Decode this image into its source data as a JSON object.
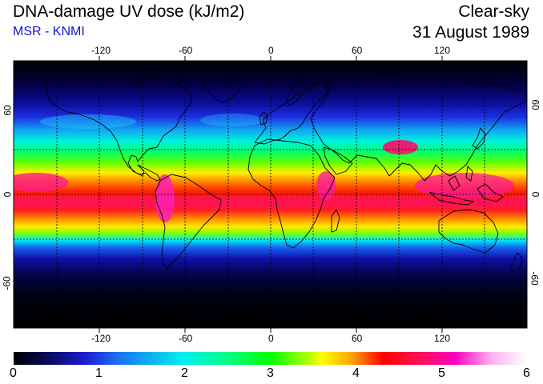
{
  "header": {
    "title": "DNA-damage UV dose (kJ/m2)",
    "subtitle": "MSR - KNMI",
    "condition": "Clear-sky",
    "date": "31 August 1989"
  },
  "map": {
    "projection": "equirectangular",
    "lon_range": [
      -180,
      180
    ],
    "lat_range": [
      -90,
      90
    ],
    "lon_ticks": [
      "-120",
      "-60",
      "0",
      "60",
      "120"
    ],
    "lon_tick_values": [
      -120,
      -60,
      0,
      60,
      120
    ],
    "lat_ticks_left": [
      "60",
      "0",
      "-60"
    ],
    "lat_ticks_right": [
      "60",
      "0",
      "-60"
    ],
    "lat_tick_values": [
      60,
      0,
      -60
    ],
    "gridlines": "dashed",
    "grid_lon_step": 30,
    "grid_lat_step": 30,
    "coastlines": true,
    "colors": {
      "background_polar": "#000000",
      "coastline": "#000000",
      "grid": "#000000"
    }
  },
  "colorbar": {
    "min": 0,
    "max": 6,
    "labels": [
      "0",
      "1",
      "2",
      "3",
      "4",
      "5",
      "6"
    ],
    "stops": [
      "#000000",
      "#0a0a60",
      "#1d1dd2",
      "#1a6ef0",
      "#00f0f0",
      "#00ff80",
      "#00ff00",
      "#c0ff00",
      "#ffff00",
      "#ffa000",
      "#ff0000",
      "#ff1060",
      "#ff00c0",
      "#ffb0f0",
      "#ffffff"
    ]
  }
}
